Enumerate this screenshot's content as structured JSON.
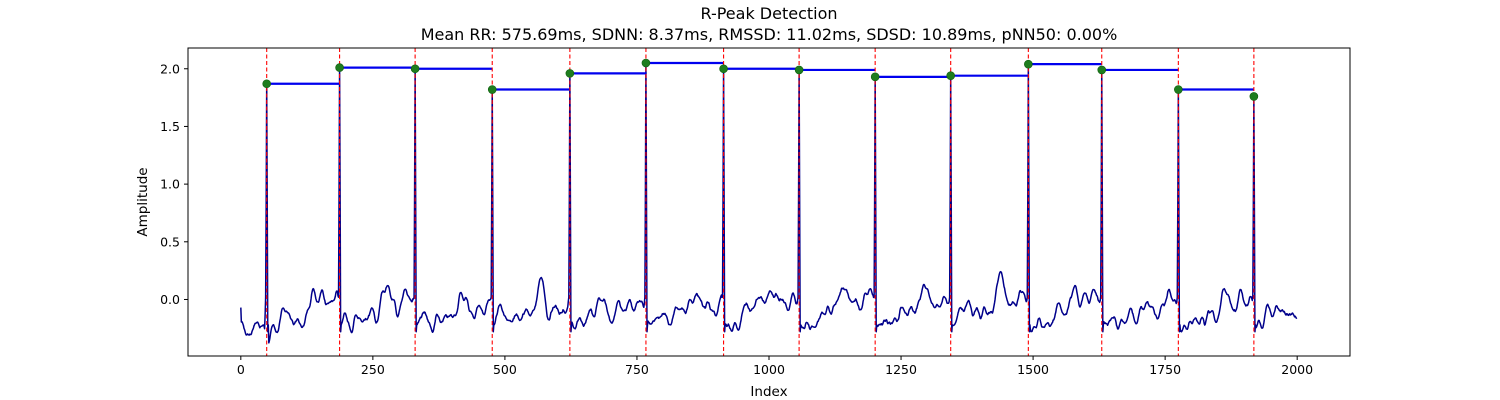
{
  "chart_data": {
    "type": "line",
    "title": "R-Peak Detection",
    "subtitle": "Mean RR: 575.69ms, SDNN: 8.37ms, RMSSD: 11.02ms, SDSD: 10.89ms, pNN50: 0.00%",
    "xlabel": "Index",
    "ylabel": "Amplitude",
    "xlim": [
      -100,
      2100
    ],
    "ylim": [
      -0.49,
      2.18
    ],
    "x_ticks": [
      0,
      250,
      500,
      750,
      1000,
      1250,
      1500,
      1750,
      2000
    ],
    "x_tick_labels": [
      "0",
      "250",
      "500",
      "750",
      "1000",
      "1250",
      "1500",
      "1750",
      "2000"
    ],
    "y_ticks": [
      0.0,
      0.5,
      1.0,
      1.5,
      2.0
    ],
    "y_tick_labels": [
      "0.0",
      "0.5",
      "1.0",
      "1.5",
      "2.0"
    ],
    "grid": false,
    "signal_samples": 2000,
    "colors": {
      "signal": "#00008b",
      "peak_marker": "#1e7d1e",
      "rr_interval": "#0000ee",
      "peak_line": "#ff0000"
    },
    "r_peaks": [
      {
        "x": 49,
        "y": 1.87
      },
      {
        "x": 187,
        "y": 2.01
      },
      {
        "x": 330,
        "y": 2.0
      },
      {
        "x": 476,
        "y": 1.82
      },
      {
        "x": 623,
        "y": 1.96
      },
      {
        "x": 767,
        "y": 2.05
      },
      {
        "x": 914,
        "y": 2.0
      },
      {
        "x": 1057,
        "y": 1.99
      },
      {
        "x": 1201,
        "y": 1.93
      },
      {
        "x": 1344,
        "y": 1.94
      },
      {
        "x": 1491,
        "y": 2.04
      },
      {
        "x": 1630,
        "y": 1.99
      },
      {
        "x": 1775,
        "y": 1.82
      },
      {
        "x": 1918,
        "y": 1.76
      }
    ]
  }
}
